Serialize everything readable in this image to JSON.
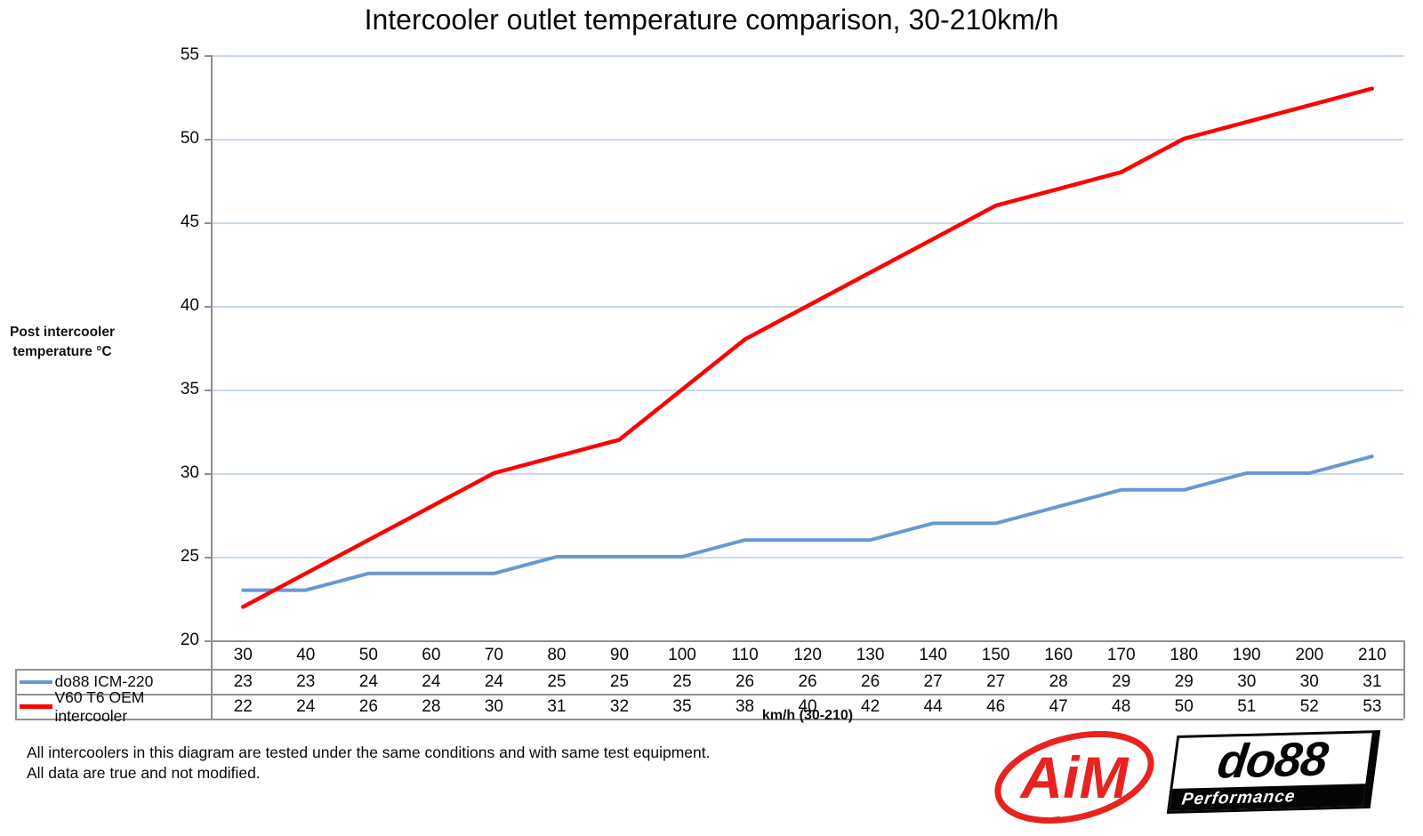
{
  "title": "Intercooler outlet temperature comparison, 30-210km/h",
  "y_axis_title_line1": "Post intercooler",
  "y_axis_title_line2": "temperature °C",
  "x_axis_title": "km/h (30-210)",
  "footer": {
    "line1": "All intercoolers in this diagram are tested under the same conditions and with same test equipment.",
    "line2": "All data are true and not modified."
  },
  "logos": {
    "aim_text": "AiM",
    "do88_text": "do88",
    "do88_sub": "Performance"
  },
  "colors": {
    "series_blue": "#6897d3",
    "series_red": "#fe0101",
    "gridline": "#c9d9ec",
    "axis_gray": "#8f8f8f",
    "aim_red": "#e8231f",
    "text": "#0a0a0a"
  },
  "chart_data": {
    "type": "line",
    "title": "Intercooler outlet temperature comparison, 30-210km/h",
    "xlabel": "km/h (30-210)",
    "ylabel": "Post intercooler temperature °C",
    "ylim": [
      20,
      55
    ],
    "ytick_step": 5,
    "grid": true,
    "legend_position": "data-table-left",
    "categories": [
      30,
      40,
      50,
      60,
      70,
      80,
      90,
      100,
      110,
      120,
      130,
      140,
      150,
      160,
      170,
      180,
      190,
      200,
      210
    ],
    "series": [
      {
        "name": "do88 ICM-220",
        "color": "#6897d3",
        "values": [
          23,
          23,
          24,
          24,
          24,
          25,
          25,
          25,
          26,
          26,
          26,
          27,
          27,
          28,
          29,
          29,
          30,
          30,
          31
        ]
      },
      {
        "name": "V60 T6 OEM intercooler",
        "color": "#fe0101",
        "values": [
          22,
          24,
          26,
          28,
          30,
          31,
          32,
          35,
          38,
          40,
          42,
          44,
          46,
          47,
          48,
          50,
          51,
          52,
          53
        ]
      }
    ]
  }
}
